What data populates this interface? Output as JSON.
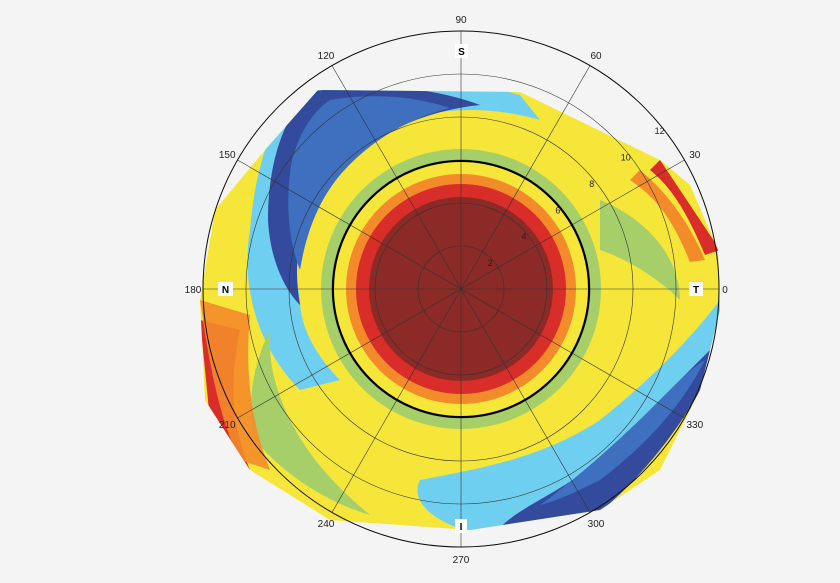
{
  "map": {
    "angle_labels": [
      {
        "deg": 0,
        "text": "0"
      },
      {
        "deg": 30,
        "text": "30"
      },
      {
        "deg": 60,
        "text": "60"
      },
      {
        "deg": 90,
        "text": "90"
      },
      {
        "deg": 120,
        "text": "120"
      },
      {
        "deg": 150,
        "text": "150"
      },
      {
        "deg": 180,
        "text": "180"
      },
      {
        "deg": 210,
        "text": "210"
      },
      {
        "deg": 240,
        "text": "240"
      },
      {
        "deg": 270,
        "text": "270"
      },
      {
        "deg": 300,
        "text": "300"
      },
      {
        "deg": 330,
        "text": "330"
      }
    ],
    "ring_labels": [
      "2",
      "4",
      "6",
      "8",
      "10",
      "12"
    ],
    "direction_labels": {
      "superior": "S",
      "nasal": "N",
      "temporal": "T",
      "inferior": "I"
    },
    "colors": {
      "center": "#8b2a26",
      "red": "#d82d28",
      "orange": "#f48b2a",
      "yellow": "#f6e63a",
      "green": "#a6cf6a",
      "cyan": "#6fcff0",
      "blue": "#3f6fbf",
      "navy": "#344a9c"
    }
  }
}
